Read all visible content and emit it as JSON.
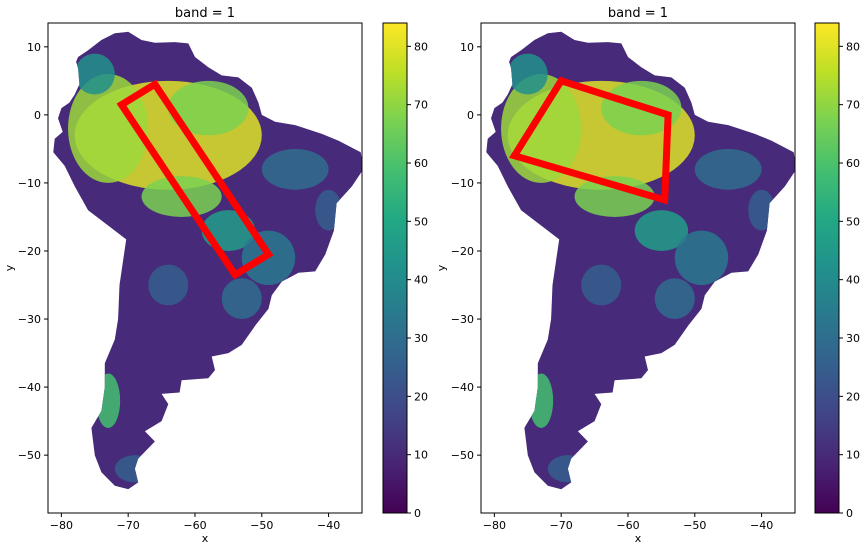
{
  "chart_data": [
    {
      "type": "heatmap",
      "title": "band = 1",
      "xlabel": "x",
      "ylabel": "y",
      "xlim": [
        -82,
        -35
      ],
      "ylim": [
        -58.5,
        13.5
      ],
      "xticks": [
        -80,
        -70,
        -60,
        -50,
        -40
      ],
      "yticks": [
        10,
        0,
        -10,
        -20,
        -30,
        -40,
        -50
      ],
      "colorbar": {
        "min": 0,
        "max": 84,
        "ticks": [
          0,
          10,
          20,
          30,
          40,
          50,
          60,
          70,
          80
        ]
      },
      "polygon": {
        "color": "#ff0000",
        "points": [
          [
            -71,
            1.5
          ],
          [
            -66,
            4.5
          ],
          [
            -49,
            -20.5
          ],
          [
            -54,
            -23.5
          ]
        ]
      }
    },
    {
      "type": "heatmap",
      "title": "band = 1",
      "xlabel": "x",
      "ylabel": "y",
      "xlim": [
        -82,
        -35
      ],
      "ylim": [
        -58.5,
        13.5
      ],
      "xticks": [
        -80,
        -70,
        -60,
        -50,
        -40
      ],
      "yticks": [
        10,
        0,
        -10,
        -20,
        -30,
        -40,
        -50
      ],
      "colorbar": {
        "min": 0,
        "max": 84,
        "ticks": [
          0,
          10,
          20,
          30,
          40,
          50,
          60,
          70,
          80
        ]
      },
      "polygon": {
        "color": "#ff0000",
        "points": [
          [
            -77,
            -6
          ],
          [
            -70,
            5
          ],
          [
            -54,
            0
          ],
          [
            -54.5,
            -12.5
          ]
        ]
      }
    }
  ]
}
